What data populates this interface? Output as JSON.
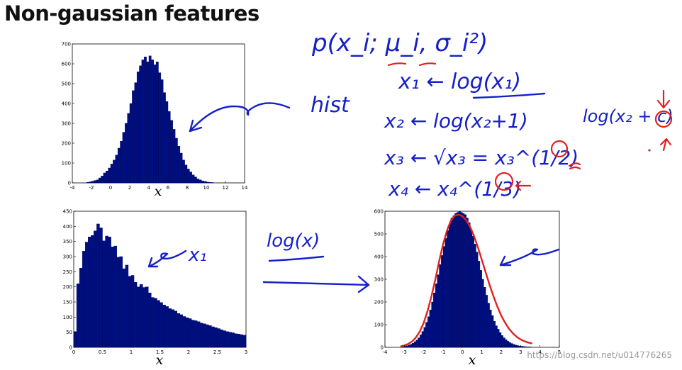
{
  "slide": {
    "title": "Non-gaussian features",
    "watermark": "https://blog.csdn.net/u014776265"
  },
  "colors": {
    "bar_fill": "#000f80",
    "fit_curve": "#e02020",
    "ink_blue": "#1520c8",
    "ink_red": "#e02020"
  },
  "annotations": {
    "density": "p(x_i; μ_i, σ_i²)",
    "hist": "hist",
    "x1_line": "x₁ ← log(x₁)",
    "x2_line": "x₂ ← log(x₂+1)",
    "x3_line": "x₃ ← √x₃ = x₃^(1/2)",
    "x4_line": "x₄ ← x₄^(1/3)",
    "side_formula": "log(x₂ + c)",
    "x1_label": "x₁",
    "transform_label": "log(x)"
  },
  "chart_data": [
    {
      "type": "bar",
      "name": "top-left histogram",
      "xlabel": "x",
      "xlim": [
        -4,
        14
      ],
      "ylim": [
        0,
        700
      ],
      "xticks": [
        "-4",
        "-2",
        "0",
        "2",
        "4",
        "6",
        "8",
        "10",
        "12",
        "14"
      ],
      "yticks": [
        "0",
        "100",
        "200",
        "300",
        "400",
        "500",
        "600",
        "700"
      ],
      "bin_width": 0.25,
      "x": [
        -2.5,
        -2.25,
        -2,
        -1.75,
        -1.5,
        -1.25,
        -1,
        -0.75,
        -0.5,
        -0.25,
        0,
        0.25,
        0.5,
        0.75,
        1,
        1.25,
        1.5,
        1.75,
        2,
        2.25,
        2.5,
        2.75,
        3,
        3.25,
        3.5,
        3.75,
        4,
        4.25,
        4.5,
        4.75,
        5,
        5.25,
        5.5,
        5.75,
        6,
        6.25,
        6.5,
        6.75,
        7,
        7.25,
        7.5,
        7.75,
        8,
        8.25,
        8.5,
        8.75,
        9,
        9.25,
        9.5,
        9.75,
        10,
        10.25,
        10.5
      ],
      "values": [
        3,
        5,
        8,
        12,
        15,
        25,
        35,
        50,
        60,
        75,
        95,
        115,
        140,
        175,
        210,
        255,
        300,
        350,
        400,
        465,
        505,
        560,
        590,
        620,
        635,
        610,
        640,
        620,
        595,
        610,
        555,
        520,
        455,
        410,
        360,
        315,
        270,
        225,
        185,
        150,
        115,
        90,
        70,
        55,
        40,
        30,
        20,
        15,
        10,
        7,
        4,
        3,
        2
      ]
    },
    {
      "type": "bar",
      "name": "bottom-left histogram",
      "xlabel": "x",
      "xlim": [
        0,
        3
      ],
      "ylim": [
        0,
        450
      ],
      "xticks": [
        "0",
        "0.5",
        "1",
        "1.5",
        "2",
        "2.5",
        "3"
      ],
      "yticks": [
        "0",
        "50",
        "100",
        "150",
        "200",
        "250",
        "300",
        "350",
        "400",
        "450"
      ],
      "bin_width": 0.05,
      "x": [
        0,
        0.05,
        0.1,
        0.15,
        0.2,
        0.25,
        0.3,
        0.35,
        0.4,
        0.45,
        0.5,
        0.55,
        0.6,
        0.65,
        0.7,
        0.75,
        0.8,
        0.85,
        0.9,
        0.95,
        1,
        1.05,
        1.1,
        1.15,
        1.2,
        1.25,
        1.3,
        1.35,
        1.4,
        1.45,
        1.5,
        1.55,
        1.6,
        1.65,
        1.7,
        1.75,
        1.8,
        1.85,
        1.9,
        1.95,
        2,
        2.05,
        2.1,
        2.15,
        2.2,
        2.25,
        2.3,
        2.35,
        2.4,
        2.45,
        2.5,
        2.55,
        2.6,
        2.65,
        2.7,
        2.75,
        2.8,
        2.85,
        2.9,
        2.95
      ],
      "values": [
        52,
        210,
        262,
        318,
        348,
        365,
        370,
        385,
        408,
        395,
        352,
        368,
        365,
        332,
        335,
        298,
        300,
        260,
        272,
        235,
        238,
        215,
        200,
        208,
        198,
        200,
        180,
        165,
        162,
        155,
        148,
        140,
        135,
        128,
        125,
        120,
        112,
        108,
        102,
        98,
        95,
        90,
        88,
        85,
        80,
        78,
        75,
        72,
        68,
        65,
        62,
        58,
        55,
        52,
        50,
        48,
        45,
        44,
        42,
        40
      ]
    },
    {
      "type": "bar",
      "name": "bottom-right histogram with fitted curve",
      "xlabel": "x",
      "xlim": [
        -4,
        5
      ],
      "ylim": [
        0,
        600
      ],
      "xticks": [
        "-4",
        "-3",
        "-2",
        "-1",
        "0",
        "1",
        "2",
        "3",
        "4",
        "5"
      ],
      "yticks": [
        "0",
        "100",
        "200",
        "300",
        "400",
        "500",
        "600"
      ],
      "bin_width": 0.1,
      "x": [
        -3.2,
        -3.1,
        -3,
        -2.9,
        -2.8,
        -2.7,
        -2.6,
        -2.5,
        -2.4,
        -2.3,
        -2.2,
        -2.1,
        -2,
        -1.9,
        -1.8,
        -1.7,
        -1.6,
        -1.5,
        -1.4,
        -1.3,
        -1.2,
        -1.1,
        -1,
        -0.9,
        -0.8,
        -0.7,
        -0.6,
        -0.5,
        -0.4,
        -0.3,
        -0.2,
        -0.1,
        0,
        0.1,
        0.2,
        0.3,
        0.4,
        0.5,
        0.6,
        0.7,
        0.8,
        0.9,
        1,
        1.1,
        1.2,
        1.3,
        1.4,
        1.5,
        1.6,
        1.7,
        1.8,
        1.9,
        2,
        2.1,
        2.2,
        2.3,
        2.4,
        2.5,
        2.6,
        2.7,
        2.8,
        2.9,
        3,
        3.1,
        3.2,
        3.3,
        3.4,
        3.5
      ],
      "values": [
        2,
        3,
        5,
        7,
        10,
        14,
        18,
        25,
        32,
        42,
        55,
        70,
        88,
        110,
        135,
        165,
        200,
        240,
        280,
        320,
        365,
        405,
        445,
        480,
        515,
        545,
        570,
        580,
        590,
        595,
        600,
        595,
        590,
        585,
        570,
        550,
        520,
        490,
        455,
        420,
        380,
        340,
        300,
        265,
        230,
        195,
        165,
        140,
        115,
        95,
        80,
        65,
        52,
        42,
        34,
        27,
        21,
        17,
        13,
        10,
        8,
        6,
        5,
        4,
        3,
        2,
        2,
        1
      ],
      "fit_curve": {
        "x": [
          -3.2,
          -3,
          -2.8,
          -2.6,
          -2.4,
          -2.2,
          -2,
          -1.8,
          -1.6,
          -1.4,
          -1.2,
          -1,
          -0.8,
          -0.6,
          -0.4,
          -0.2,
          0,
          0.2,
          0.4,
          0.6,
          0.8,
          1,
          1.2,
          1.4,
          1.6,
          1.8,
          2,
          2.2,
          2.4,
          2.6,
          2.8,
          3,
          3.2,
          3.4,
          3.6
        ],
        "values": [
          4,
          8,
          15,
          26,
          44,
          70,
          108,
          160,
          225,
          300,
          380,
          455,
          515,
          558,
          580,
          585,
          578,
          560,
          530,
          490,
          440,
          385,
          330,
          275,
          225,
          180,
          140,
          108,
          82,
          62,
          46,
          35,
          27,
          21,
          17
        ]
      }
    }
  ]
}
